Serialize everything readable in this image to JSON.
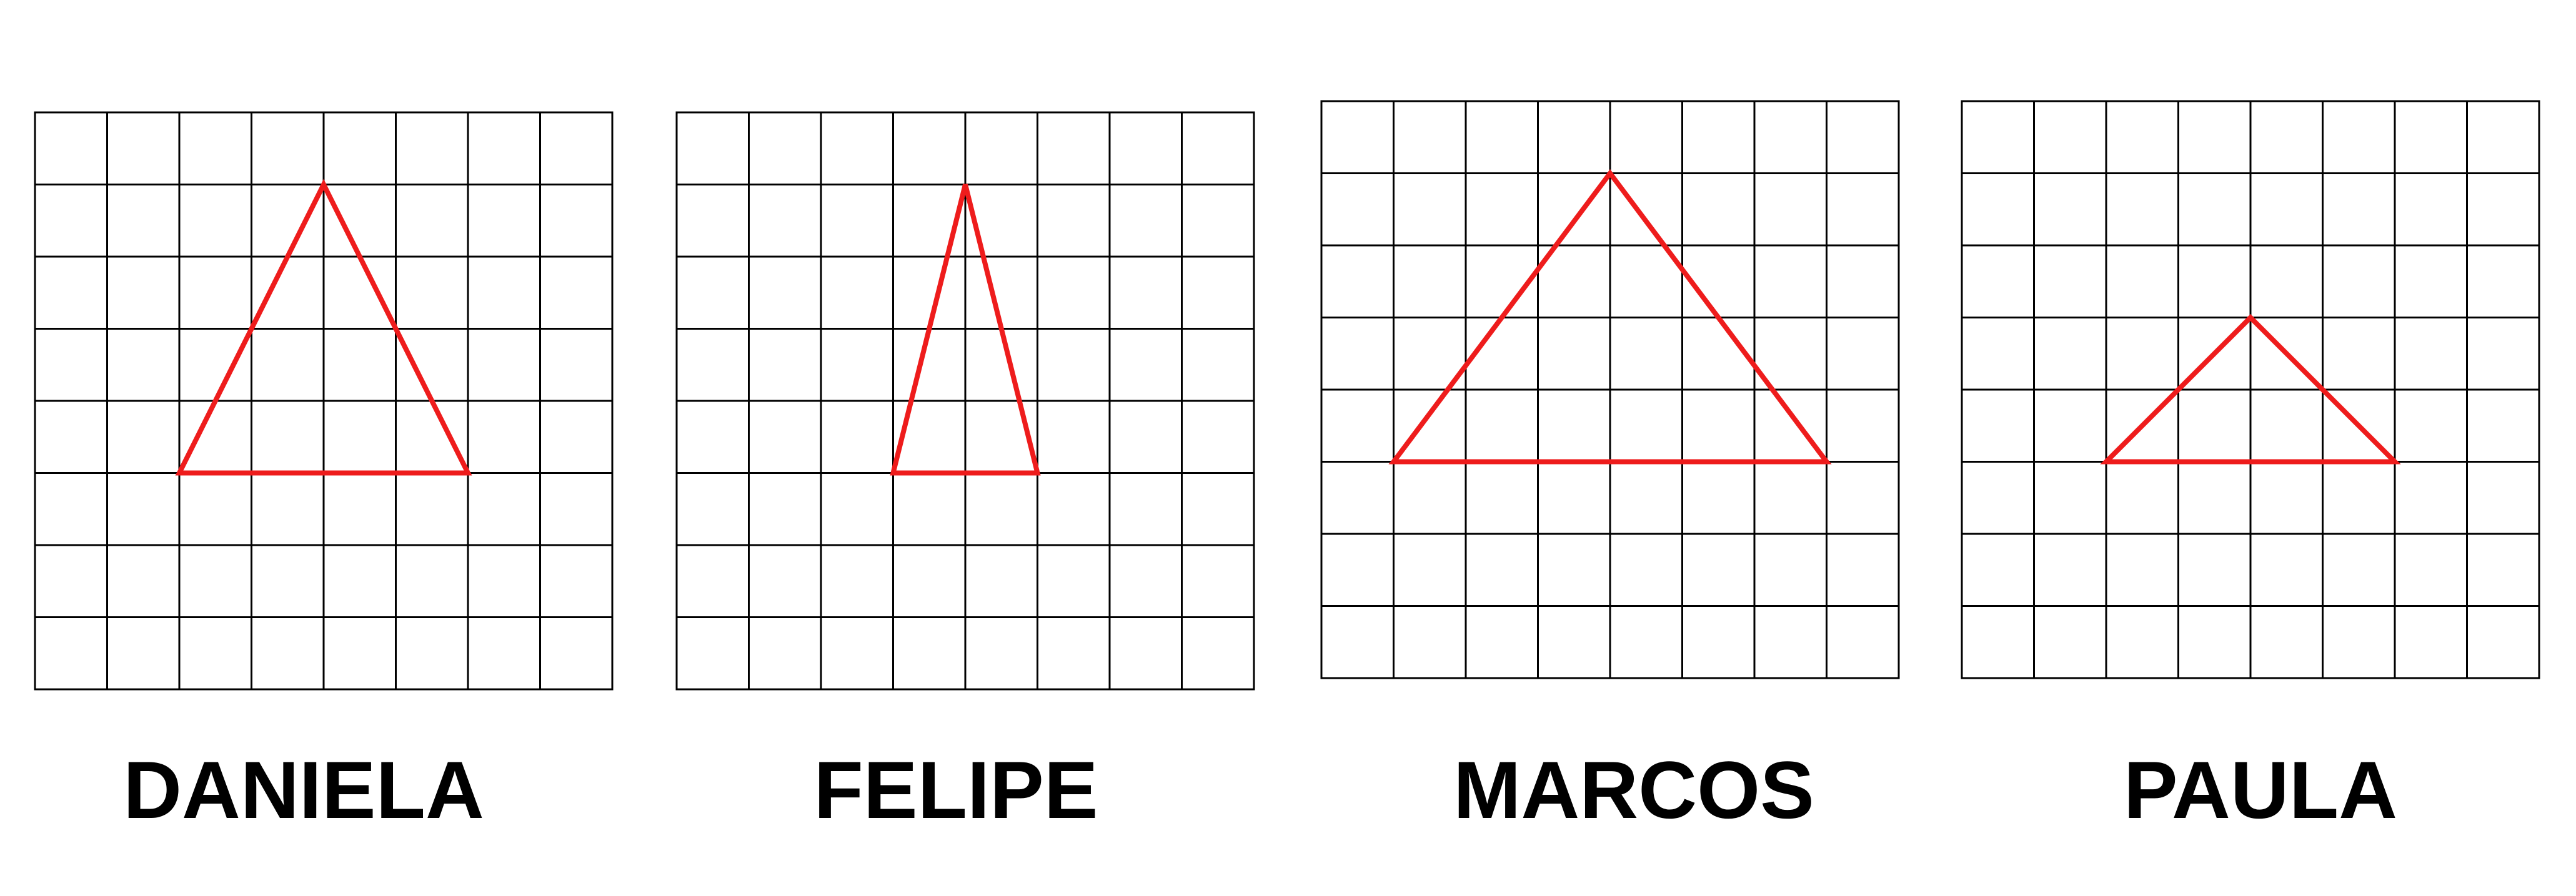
{
  "colors": {
    "grid_line": "#000000",
    "triangle_stroke": "#ee1c1c",
    "label_text": "#000000",
    "background": "#ffffff"
  },
  "grid": {
    "rows": 8,
    "cols": 8
  },
  "panels": [
    {
      "label": "DANIELA",
      "triangle_cells": [
        [
          2,
          5
        ],
        [
          4,
          1
        ],
        [
          6,
          5
        ]
      ]
    },
    {
      "label": "FELIPE",
      "triangle_cells": [
        [
          3,
          5
        ],
        [
          4,
          1
        ],
        [
          5,
          5
        ]
      ]
    },
    {
      "label": "MARCOS",
      "triangle_cells": [
        [
          1,
          5
        ],
        [
          4,
          1
        ],
        [
          7,
          5
        ]
      ]
    },
    {
      "label": "PAULA",
      "triangle_cells": [
        [
          2,
          5
        ],
        [
          4,
          3
        ],
        [
          6,
          5
        ]
      ]
    }
  ]
}
